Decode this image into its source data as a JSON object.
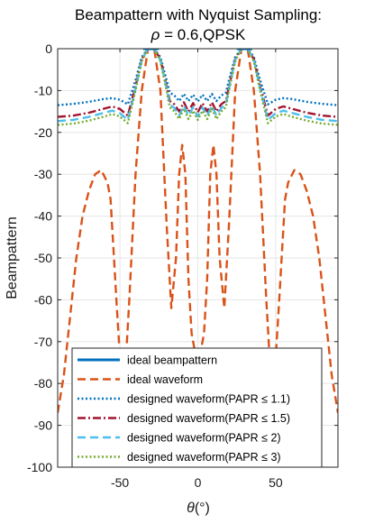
{
  "chart_data": {
    "type": "line",
    "title_line1": "Beampattern with Nyquist Sampling:",
    "title_line2_symbol": "ρ",
    "title_line2_rest": " = 0.6,QPSK",
    "xlabel_symbol": "θ",
    "xlabel_rest": "(°)",
    "ylabel": "Beampattern",
    "xlim": [
      -90,
      90
    ],
    "ylim": [
      -100,
      0
    ],
    "xticks": [
      -50,
      0,
      50
    ],
    "yticks": [
      0,
      -10,
      -20,
      -30,
      -40,
      -50,
      -60,
      -70,
      -80,
      -90,
      -100
    ],
    "grid": true,
    "legend_position": "bottom",
    "series": [
      {
        "name": "ideal beampattern",
        "color": "#0072BD",
        "style": "solid",
        "segments": [
          {
            "x": [
              -35,
              -25
            ],
            "y": [
              0,
              0
            ]
          },
          {
            "x": [
              25,
              35
            ],
            "y": [
              0,
              0
            ]
          }
        ]
      },
      {
        "name": "ideal waveform",
        "color": "#D95319",
        "style": "dashed",
        "x": [
          -90,
          -86,
          -82,
          -78,
          -74,
          -70,
          -66,
          -62,
          -58,
          -56,
          -52,
          -48,
          -44,
          -40,
          -36,
          -32,
          -28,
          -24,
          -20,
          -17,
          -14,
          -12,
          -10,
          -8,
          -6,
          -4,
          -2,
          0,
          2,
          4,
          6,
          8,
          10,
          12,
          14,
          17,
          20,
          24,
          28,
          32,
          36,
          40,
          44,
          48,
          52,
          56,
          58,
          62,
          66,
          70,
          74,
          78,
          82,
          86,
          90
        ],
        "y": [
          -87,
          -78,
          -64,
          -50,
          -40,
          -34,
          -30,
          -29,
          -32,
          -36,
          -62,
          -86,
          -60,
          -30,
          -10,
          0,
          0,
          -10,
          -42,
          -62,
          -50,
          -30,
          -23,
          -30,
          -55,
          -68,
          -72,
          -73,
          -72,
          -68,
          -55,
          -30,
          -23,
          -30,
          -50,
          -62,
          -42,
          -10,
          0,
          0,
          -10,
          -30,
          -60,
          -86,
          -62,
          -36,
          -32,
          -29,
          -30,
          -34,
          -40,
          -50,
          -64,
          -78,
          -87
        ]
      },
      {
        "name": "designed waveform(PAPR ≤ 1.1)",
        "color": "#0072BD",
        "style": "dotted",
        "x": [
          -90,
          -80,
          -70,
          -60,
          -55,
          -50,
          -45,
          -40,
          -36,
          -32,
          -28,
          -24,
          -20,
          -18,
          -15,
          -12,
          -9,
          -6,
          -3,
          0,
          3,
          6,
          9,
          12,
          15,
          18,
          20,
          24,
          28,
          32,
          36,
          40,
          45,
          50,
          55,
          60,
          70,
          80,
          90
        ],
        "y": [
          -13.5,
          -13.2,
          -12.7,
          -12,
          -11.8,
          -12.2,
          -13.3,
          -7.5,
          -2,
          0,
          0,
          -2,
          -7.5,
          -10.5,
          -11.2,
          -12.5,
          -10.8,
          -12.5,
          -11,
          -12.6,
          -11,
          -12.5,
          -10.8,
          -12.5,
          -11.2,
          -10.5,
          -7.5,
          -2,
          0,
          0,
          -2,
          -7.5,
          -13.3,
          -12.2,
          -11.8,
          -12,
          -12.7,
          -13.2,
          -13.5
        ]
      },
      {
        "name": "designed waveform(PAPR ≤ 1.5)",
        "color": "#A2142F",
        "style": "dashdot",
        "x": [
          -90,
          -80,
          -70,
          -60,
          -55,
          -50,
          -45,
          -40,
          -36,
          -32,
          -28,
          -24,
          -20,
          -18,
          -15,
          -12,
          -9,
          -6,
          -3,
          0,
          3,
          6,
          9,
          12,
          15,
          18,
          20,
          24,
          28,
          32,
          36,
          40,
          45,
          50,
          55,
          60,
          70,
          80,
          90
        ],
        "y": [
          -16.3,
          -16,
          -15.3,
          -14.3,
          -13.8,
          -14.4,
          -16,
          -9,
          -2.5,
          0,
          0,
          -2.5,
          -9,
          -12.5,
          -13.3,
          -15,
          -12.8,
          -15,
          -13,
          -15.2,
          -13,
          -15,
          -12.8,
          -15,
          -13.3,
          -12.5,
          -9,
          -2.5,
          0,
          0,
          -2.5,
          -9,
          -16,
          -14.4,
          -13.8,
          -14.3,
          -15.3,
          -16,
          -16.3
        ]
      },
      {
        "name": "designed waveform(PAPR ≤ 2)",
        "color": "#4DBEEE",
        "style": "dashed",
        "x": [
          -90,
          -80,
          -70,
          -60,
          -55,
          -50,
          -45,
          -40,
          -36,
          -32,
          -28,
          -24,
          -20,
          -18,
          -15,
          -12,
          -9,
          -6,
          -3,
          0,
          3,
          6,
          9,
          12,
          15,
          18,
          20,
          24,
          28,
          32,
          36,
          40,
          45,
          50,
          55,
          60,
          70,
          80,
          90
        ],
        "y": [
          -17.3,
          -17,
          -16.3,
          -15.3,
          -14.8,
          -15.4,
          -17,
          -9.5,
          -2.7,
          0,
          0,
          -2.7,
          -9.5,
          -13.3,
          -14.2,
          -16,
          -13.6,
          -16,
          -14,
          -16.2,
          -14,
          -16,
          -13.6,
          -16,
          -14.2,
          -13.3,
          -9.5,
          -2.7,
          0,
          0,
          -2.7,
          -9.5,
          -17,
          -15.4,
          -14.8,
          -15.3,
          -16.3,
          -17,
          -17.3
        ]
      },
      {
        "name": "designed waveform(PAPR ≤ 3)",
        "color": "#77AC30",
        "style": "dotted",
        "x": [
          -90,
          -80,
          -70,
          -60,
          -55,
          -50,
          -45,
          -40,
          -36,
          -32,
          -28,
          -24,
          -20,
          -18,
          -15,
          -12,
          -9,
          -6,
          -3,
          0,
          3,
          6,
          9,
          12,
          15,
          18,
          20,
          24,
          28,
          32,
          36,
          40,
          45,
          50,
          55,
          60,
          70,
          80,
          90
        ],
        "y": [
          -18.2,
          -17.9,
          -17.2,
          -16.2,
          -15.6,
          -16.2,
          -17.8,
          -10,
          -3,
          0,
          0,
          -3,
          -10,
          -14,
          -15,
          -16.8,
          -14.3,
          -16.8,
          -14.8,
          -17,
          -14.8,
          -16.8,
          -14.3,
          -16.8,
          -15,
          -14,
          -10,
          -3,
          0,
          0,
          -3,
          -10,
          -17.8,
          -16.2,
          -15.6,
          -16.2,
          -17.2,
          -17.9,
          -18.2
        ]
      }
    ]
  }
}
